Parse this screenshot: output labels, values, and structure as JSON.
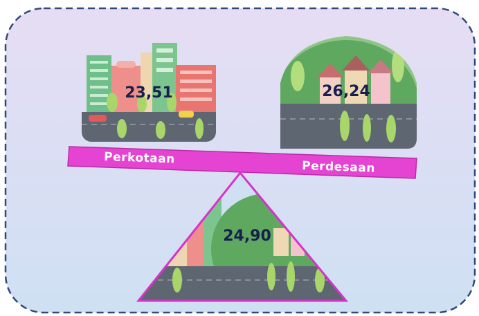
{
  "urban": {
    "label": "Perkotaan",
    "value": "23,51"
  },
  "rural": {
    "label": "Perdesaan",
    "value": "26,24"
  },
  "total": {
    "value": "24,90"
  }
}
